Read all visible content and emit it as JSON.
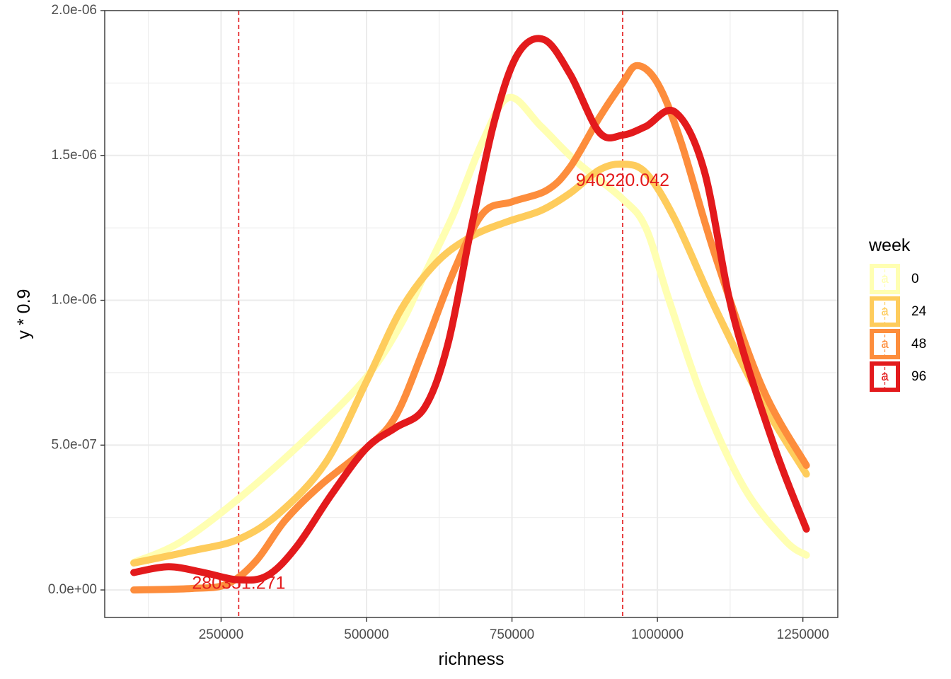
{
  "chart_data": {
    "type": "line",
    "xlabel": "richness",
    "ylabel": "y * 0.9",
    "xlim": [
      50000,
      1310000
    ],
    "ylim": [
      -9.5e-08,
      2e-06
    ],
    "x_ticks": [
      250000,
      500000,
      750000,
      1000000,
      1250000
    ],
    "x_tick_labels": [
      "250000",
      "500000",
      "750000",
      "1000000",
      "1250000"
    ],
    "y_ticks": [
      0,
      5e-07,
      1e-06,
      1.5e-06,
      2e-06
    ],
    "y_tick_labels": [
      "0.0e+00",
      "5.0e-07",
      "1.0e-06",
      "1.5e-06",
      "2.0e-06"
    ],
    "grid": true,
    "legend": {
      "title": "week",
      "placement": "right",
      "key_glyph": "a"
    },
    "series": [
      {
        "name": "0",
        "color": "#FFFFB2",
        "points": [
          [
            100000,
            9.5e-08
          ],
          [
            180000,
            1.65e-07
          ],
          [
            280000,
            3.15e-07
          ],
          [
            400000,
            5.3e-07
          ],
          [
            500000,
            7.35e-07
          ],
          [
            560000,
            9.2e-07
          ],
          [
            600000,
            1.09e-06
          ],
          [
            650000,
            1.3e-06
          ],
          [
            700000,
            1.55e-06
          ],
          [
            745000,
            1.7e-06
          ],
          [
            800000,
            1.6e-06
          ],
          [
            860000,
            1.48e-06
          ],
          [
            940000,
            1.35e-06
          ],
          [
            980000,
            1.25e-06
          ],
          [
            1020000,
            1e-06
          ],
          [
            1080000,
            6.5e-07
          ],
          [
            1150000,
            3.5e-07
          ],
          [
            1220000,
            1.7e-07
          ],
          [
            1256000,
            1.2e-07
          ]
        ]
      },
      {
        "name": "24",
        "color": "#FECC5C",
        "points": [
          [
            100000,
            9.3e-08
          ],
          [
            200000,
            1.35e-07
          ],
          [
            280000,
            1.75e-07
          ],
          [
            350000,
            2.65e-07
          ],
          [
            430000,
            4.4e-07
          ],
          [
            500000,
            7.2e-07
          ],
          [
            560000,
            9.7e-07
          ],
          [
            620000,
            1.13e-06
          ],
          [
            680000,
            1.22e-06
          ],
          [
            740000,
            1.27e-06
          ],
          [
            800000,
            1.31e-06
          ],
          [
            850000,
            1.37e-06
          ],
          [
            900000,
            1.45e-06
          ],
          [
            940000,
            1.47e-06
          ],
          [
            980000,
            1.44e-06
          ],
          [
            1030000,
            1.28e-06
          ],
          [
            1100000,
            9.7e-07
          ],
          [
            1180000,
            6.5e-07
          ],
          [
            1256000,
            4e-07
          ]
        ]
      },
      {
        "name": "48",
        "color": "#FD8D3C",
        "points": [
          [
            100000,
            0.0
          ],
          [
            200000,
            5e-09
          ],
          [
            260000,
            2e-08
          ],
          [
            310000,
            1e-07
          ],
          [
            360000,
            2.4e-07
          ],
          [
            420000,
            3.6e-07
          ],
          [
            500000,
            4.9e-07
          ],
          [
            550000,
            6e-07
          ],
          [
            600000,
            8.4e-07
          ],
          [
            650000,
            1.1e-06
          ],
          [
            700000,
            1.3e-06
          ],
          [
            750000,
            1.34e-06
          ],
          [
            810000,
            1.38e-06
          ],
          [
            850000,
            1.46e-06
          ],
          [
            900000,
            1.63e-06
          ],
          [
            940000,
            1.75e-06
          ],
          [
            965000,
            1.81e-06
          ],
          [
            1000000,
            1.75e-06
          ],
          [
            1040000,
            1.55e-06
          ],
          [
            1100000,
            1.15e-06
          ],
          [
            1180000,
            7e-07
          ],
          [
            1256000,
            4.3e-07
          ]
        ]
      },
      {
        "name": "96",
        "color": "#E31A1C",
        "points": [
          [
            100000,
            6e-08
          ],
          [
            160000,
            8e-08
          ],
          [
            220000,
            6e-08
          ],
          [
            280000,
            3.5e-08
          ],
          [
            330000,
            5e-08
          ],
          [
            380000,
            1.5e-07
          ],
          [
            440000,
            3.3e-07
          ],
          [
            500000,
            4.9e-07
          ],
          [
            550000,
            5.6e-07
          ],
          [
            600000,
            6.3e-07
          ],
          [
            640000,
            8.5e-07
          ],
          [
            680000,
            1.25e-06
          ],
          [
            720000,
            1.62e-06
          ],
          [
            760000,
            1.85e-06
          ],
          [
            805000,
            1.9e-06
          ],
          [
            850000,
            1.78e-06
          ],
          [
            900000,
            1.58e-06
          ],
          [
            940000,
            1.57e-06
          ],
          [
            980000,
            1.6e-06
          ],
          [
            1030000,
            1.65e-06
          ],
          [
            1080000,
            1.45e-06
          ],
          [
            1130000,
            9.5e-07
          ],
          [
            1200000,
            5e-07
          ],
          [
            1256000,
            2.1e-07
          ]
        ]
      }
    ],
    "vlines": [
      {
        "x": 280351.271,
        "color": "#E31A1C",
        "label": "280351.271",
        "label_y": 2e-08
      },
      {
        "x": 940220.042,
        "color": "#E31A1C",
        "label": "940220.042",
        "label_y": 1.41e-06
      }
    ]
  }
}
